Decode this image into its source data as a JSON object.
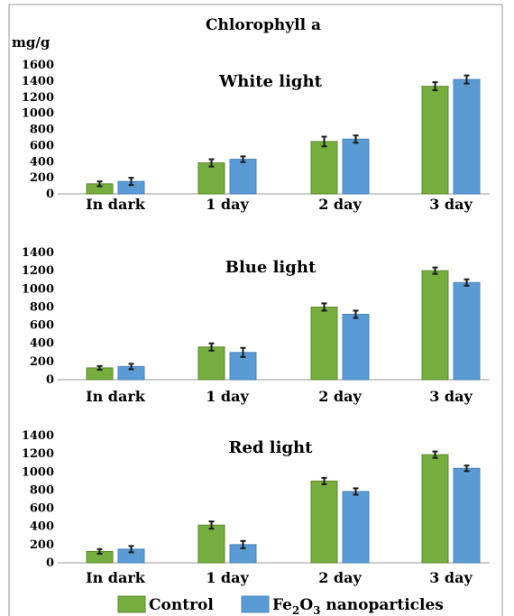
{
  "chart_data": [
    {
      "type": "bar",
      "title": "White light",
      "categories": [
        "In dark",
        "1 day",
        "2 day",
        "3 day"
      ],
      "ylim": [
        0,
        1600
      ],
      "yticks": [
        0,
        200,
        400,
        600,
        800,
        1000,
        1200,
        1400,
        1600
      ],
      "series": [
        {
          "name": "Control",
          "values": [
            125,
            385,
            650,
            1335
          ],
          "errors": [
            30,
            45,
            60,
            50
          ]
        },
        {
          "name": "Fe2O3 nanoparticles",
          "values": [
            155,
            430,
            680,
            1420
          ],
          "errors": [
            45,
            35,
            45,
            50
          ]
        }
      ]
    },
    {
      "type": "bar",
      "title": "Blue light",
      "categories": [
        "In dark",
        "1 day",
        "2 day",
        "3 day"
      ],
      "ylim": [
        0,
        1400
      ],
      "yticks": [
        0,
        200,
        400,
        600,
        800,
        1000,
        1200,
        1400
      ],
      "series": [
        {
          "name": "Control",
          "values": [
            130,
            360,
            800,
            1200
          ],
          "errors": [
            20,
            40,
            40,
            35
          ]
        },
        {
          "name": "Fe2O3 nanoparticles",
          "values": [
            145,
            300,
            720,
            1070
          ],
          "errors": [
            30,
            50,
            40,
            35
          ]
        }
      ]
    },
    {
      "type": "bar",
      "title": "Red light",
      "categories": [
        "In dark",
        "1 day",
        "2 day",
        "3 day"
      ],
      "ylim": [
        0,
        1400
      ],
      "yticks": [
        0,
        200,
        400,
        600,
        800,
        1000,
        1200,
        1400
      ],
      "series": [
        {
          "name": "Control",
          "values": [
            125,
            415,
            900,
            1190
          ],
          "errors": [
            25,
            40,
            35,
            35
          ]
        },
        {
          "name": "Fe2O3 nanoparticles",
          "values": [
            150,
            200,
            785,
            1040
          ],
          "errors": [
            35,
            40,
            35,
            30
          ]
        }
      ]
    }
  ],
  "figure": {
    "title": "Chlorophyll a",
    "ylabel": "mg/g"
  },
  "legend": {
    "control_label": "Control",
    "nano_prefix": "Fe",
    "nano_sub1": "2",
    "nano_mid": "O",
    "nano_sub2": "3",
    "nano_suffix": " nanoparticles"
  },
  "colors": {
    "control": "#77ac3e",
    "control_edge": "#5e8a2f",
    "nano": "#5b9bd5",
    "nano_edge": "#4a84b8"
  }
}
